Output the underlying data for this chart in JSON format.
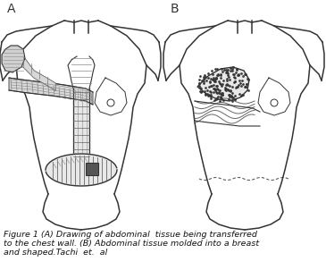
{
  "label_A": "A",
  "label_B": "B",
  "caption_line1": "Figure 1 (A) Drawing of abdominal  tissue being transferred",
  "caption_line2": "to the chest wall. (B) Abdominal tissue molded into a breast",
  "caption_line3": "and shaped.Tachi  et.  al",
  "bg_color": "#ffffff",
  "line_color": "#333333",
  "caption_fontsize": 6.8,
  "label_fontsize": 10
}
